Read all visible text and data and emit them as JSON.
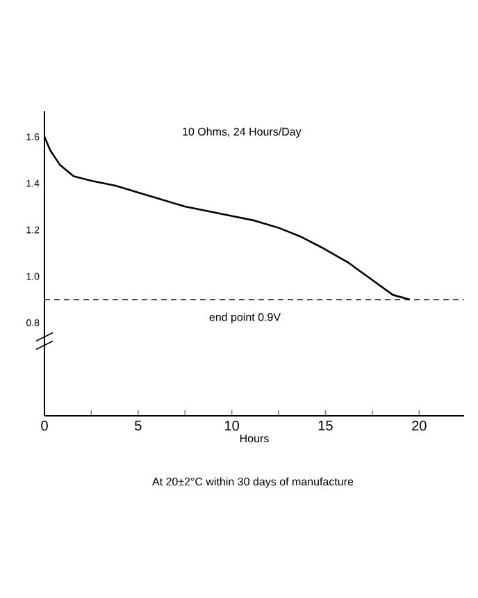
{
  "chart_data": {
    "type": "line",
    "xlabel": "Hours",
    "annotations": [
      "10 Ohms, 24 Hours/Day",
      "At 20±2°C within 30 days of manufacture"
    ],
    "x": [
      0,
      0.32,
      0.82,
      1.56,
      2.55,
      3.79,
      5.02,
      6.26,
      7.5,
      8.74,
      9.98,
      11.2,
      12.45,
      13.7,
      14.9,
      16.2,
      17.4,
      18.6,
      19.5
    ],
    "values": [
      1.6,
      1.54,
      1.48,
      1.43,
      1.41,
      1.39,
      1.36,
      1.33,
      1.3,
      1.28,
      1.26,
      1.24,
      1.21,
      1.17,
      1.12,
      1.06,
      0.99,
      0.92,
      0.9
    ],
    "color": "#000000",
    "marker": "none",
    "line_style": "solid",
    "xlim": [
      0,
      22.4
    ],
    "ylim": [
      0.4,
      1.71
    ],
    "xticks": [
      0,
      {
        "value": 2.5,
        "label": null
      },
      5,
      {
        "value": 7.5,
        "label": null
      },
      10,
      {
        "value": 12.5,
        "label": null
      },
      15,
      {
        "value": 17.5,
        "label": null
      },
      20
    ],
    "yticks": [
      0.8,
      {
        "value": 1.0,
        "label": "1.0"
      },
      1.2,
      1.4,
      1.6
    ],
    "ref_lines": [
      {
        "axis": "y",
        "value": 0.9,
        "label": "end point 0.9V",
        "line_style": "dashed",
        "color": "#000000"
      }
    ]
  }
}
